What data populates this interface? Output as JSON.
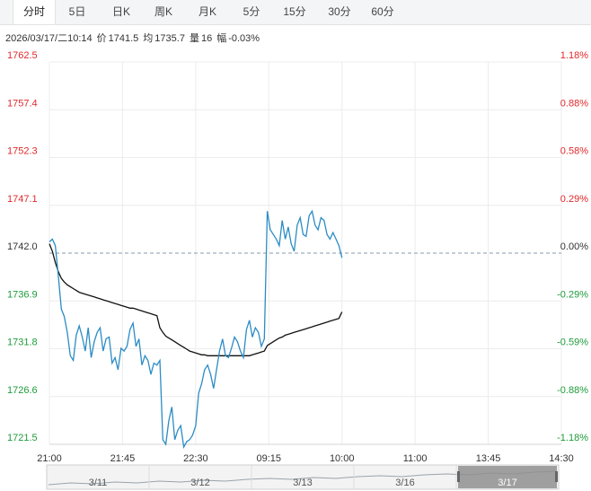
{
  "tabs": [
    {
      "label": "分时",
      "active": true
    },
    {
      "label": "5日",
      "active": false
    },
    {
      "label": "日K",
      "active": false
    },
    {
      "label": "周K",
      "active": false
    },
    {
      "label": "月K",
      "active": false
    },
    {
      "label": "5分",
      "active": false
    },
    {
      "label": "15分",
      "active": false
    },
    {
      "label": "30分",
      "active": false
    },
    {
      "label": "60分",
      "active": false
    }
  ],
  "info": {
    "datetime": "2026/03/17/二10:14",
    "price_label": "价",
    "price": "1741.5",
    "avg_label": "均",
    "avg": "1735.7",
    "vol_label": "量",
    "vol": "16",
    "change_label": "幅",
    "change": "-0.03%"
  },
  "colors": {
    "up": "#e0292b",
    "down": "#1e9b3a",
    "neutral": "#333333",
    "price_line": "#2b8cc4",
    "avg_line": "#111111",
    "grid": "#ececec",
    "ref_line": "#8a9aa8"
  },
  "chart_data": {
    "type": "line",
    "reference_price": 1742.0,
    "ylim": [
      1721.5,
      1762.5
    ],
    "y_ticks_left": [
      "1762.5",
      "1757.4",
      "1752.3",
      "1747.1",
      "1742.0",
      "1736.9",
      "1731.8",
      "1726.6",
      "1721.5"
    ],
    "y_ticks_right": [
      "1.18%",
      "0.88%",
      "0.58%",
      "0.29%",
      "0.00%",
      "-0.29%",
      "-0.59%",
      "-0.88%",
      "-1.18%"
    ],
    "x_ticks": [
      "21:00",
      "21:45",
      "22:30",
      "09:15",
      "10:00",
      "11:00",
      "13:45",
      "14:30"
    ],
    "series": [
      {
        "key": "price",
        "x_range": [
          0,
          98
        ],
        "values": [
          1743.2,
          1743.5,
          1742.8,
          1739.5,
          1736.0,
          1735.2,
          1733.5,
          1731.0,
          1730.5,
          1733.2,
          1734.2,
          1733.0,
          1731.5,
          1734.0,
          1730.8,
          1732.5,
          1733.5,
          1734.0,
          1731.5,
          1732.8,
          1733.0,
          1730.2,
          1730.8,
          1729.5,
          1731.8,
          1731.5,
          1732.0,
          1733.8,
          1734.5,
          1732.0,
          1732.8,
          1730.0,
          1731.0,
          1730.5,
          1729.0,
          1730.2,
          1730.0,
          1730.5,
          1722.0,
          1721.5,
          1724.0,
          1725.5,
          1722.0,
          1723.0,
          1723.5,
          1721.2,
          1721.8,
          1722.0,
          1722.5,
          1723.5,
          1727.0,
          1728.0,
          1729.5,
          1730.0,
          1729.0,
          1727.5,
          1729.5,
          1731.5,
          1732.8,
          1731.0,
          1730.8,
          1731.8,
          1733.0,
          1732.5,
          1731.5,
          1730.8,
          1733.8,
          1734.8,
          1733.0,
          1734.0,
          1733.5,
          1732.0,
          1732.8,
          1746.5,
          1744.5,
          1744.0,
          1743.5,
          1742.8,
          1745.5,
          1743.5,
          1744.8,
          1743.0,
          1742.2,
          1745.0,
          1745.8,
          1744.0,
          1743.8,
          1746.0,
          1746.5,
          1745.0,
          1744.5,
          1745.8,
          1745.5,
          1744.0,
          1743.5,
          1744.2,
          1743.5,
          1742.8,
          1741.5
        ]
      },
      {
        "key": "avg",
        "x_range": [
          0,
          98
        ],
        "values": [
          1743.0,
          1742.2,
          1741.0,
          1740.0,
          1739.3,
          1738.9,
          1738.6,
          1738.4,
          1738.2,
          1738.0,
          1737.8,
          1737.7,
          1737.6,
          1737.5,
          1737.4,
          1737.3,
          1737.2,
          1737.1,
          1737.0,
          1736.9,
          1736.8,
          1736.7,
          1736.6,
          1736.5,
          1736.4,
          1736.3,
          1736.2,
          1736.1,
          1736.1,
          1736.0,
          1735.9,
          1735.8,
          1735.7,
          1735.6,
          1735.5,
          1735.4,
          1735.3,
          1734.0,
          1733.5,
          1733.1,
          1732.9,
          1732.7,
          1732.5,
          1732.3,
          1732.1,
          1731.9,
          1731.7,
          1731.5,
          1731.4,
          1731.3,
          1731.2,
          1731.1,
          1731.1,
          1731.0,
          1731.0,
          1731.0,
          1731.0,
          1731.0,
          1731.0,
          1731.0,
          1731.0,
          1731.0,
          1731.0,
          1731.0,
          1731.0,
          1731.0,
          1731.0,
          1731.0,
          1731.1,
          1731.2,
          1731.3,
          1731.4,
          1731.5,
          1732.1,
          1732.3,
          1732.5,
          1732.7,
          1732.9,
          1733.0,
          1733.2,
          1733.3,
          1733.4,
          1733.5,
          1733.6,
          1733.7,
          1733.8,
          1733.9,
          1734.0,
          1734.1,
          1734.2,
          1734.3,
          1734.4,
          1734.5,
          1734.6,
          1734.7,
          1734.8,
          1734.9,
          1735.0,
          1735.7
        ]
      }
    ],
    "sessions": [
      {
        "label": "3/11",
        "active": false
      },
      {
        "label": "3/12",
        "active": false
      },
      {
        "label": "3/13",
        "active": false
      },
      {
        "label": "3/16",
        "active": false
      },
      {
        "label": "3/17",
        "active": true
      }
    ]
  }
}
